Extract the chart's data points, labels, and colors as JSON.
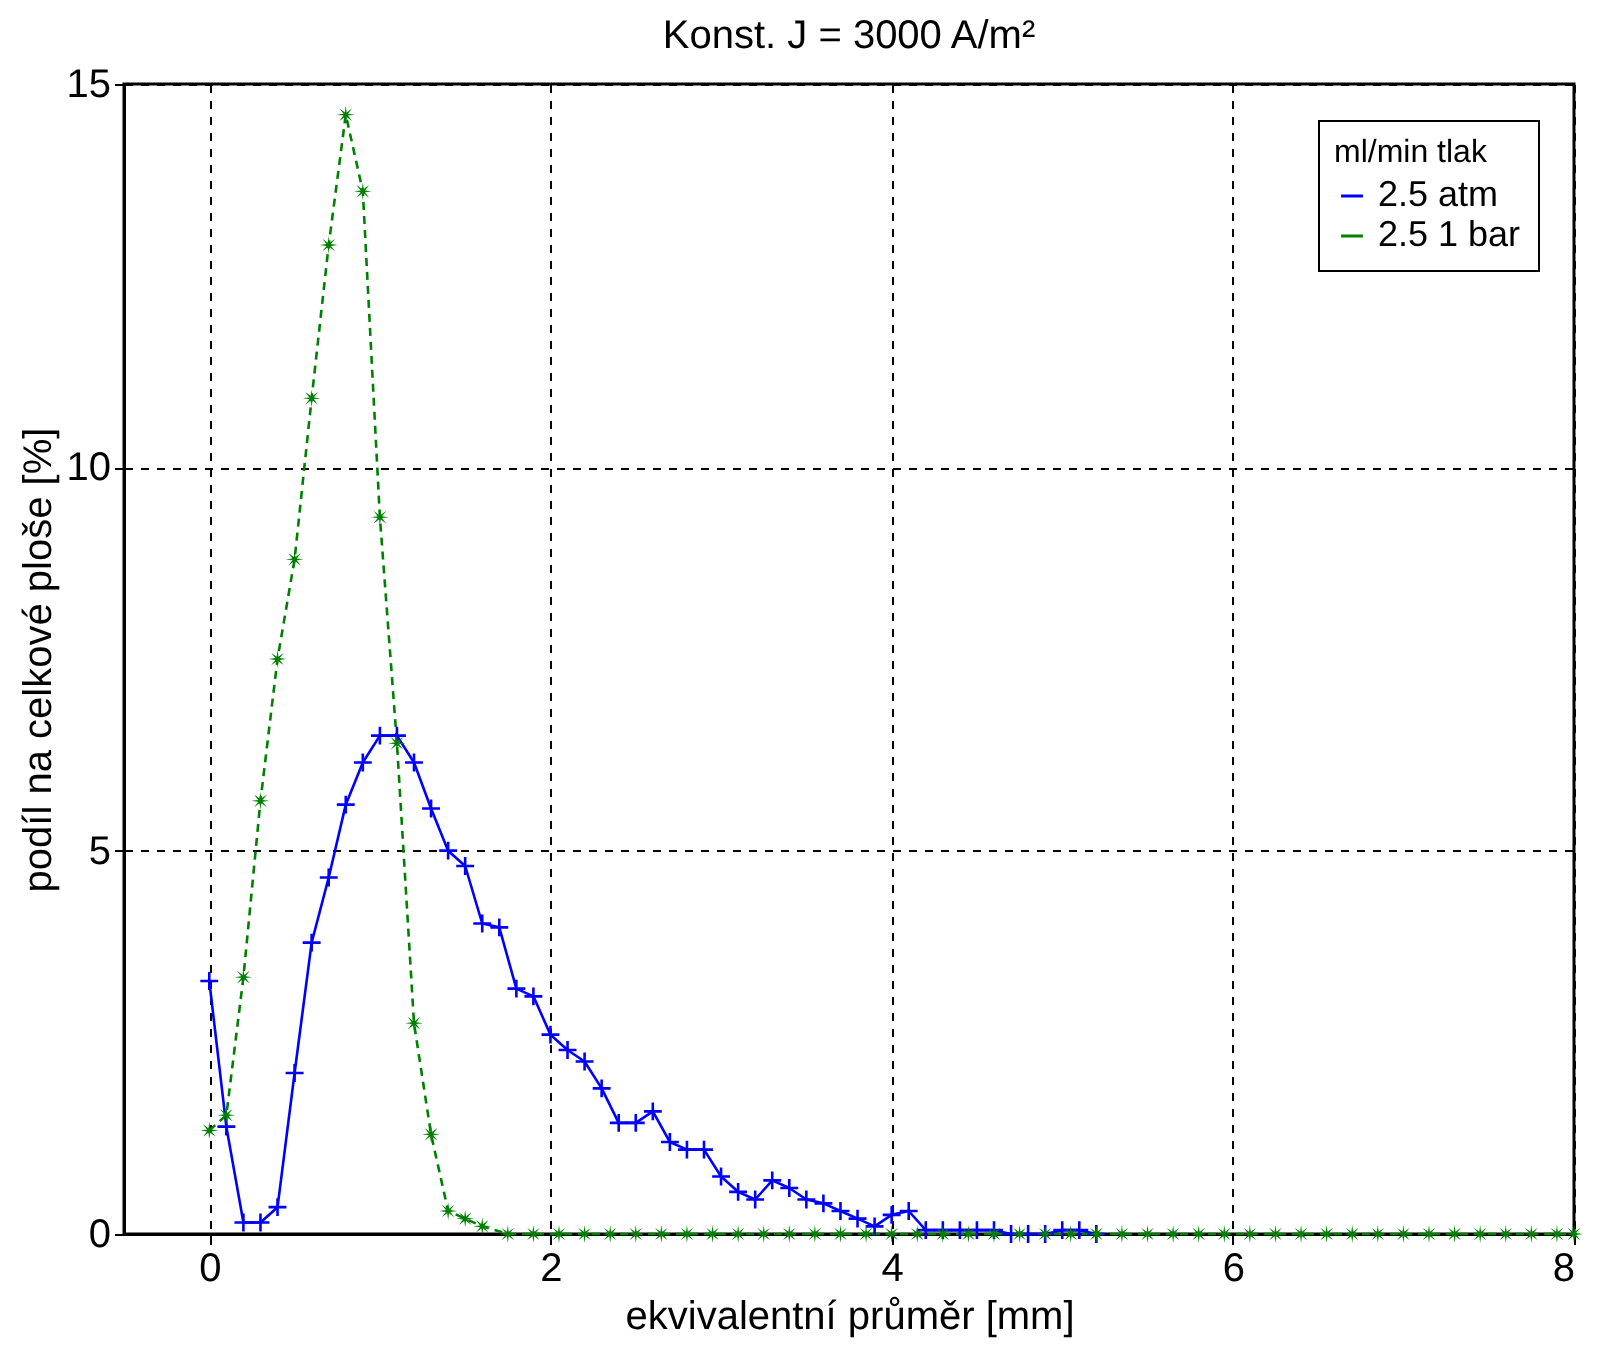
{
  "chart_data": {
    "type": "line",
    "title": "Konst. J = 3000 A/m²",
    "xlabel": "ekvivalentní průměr [mm]",
    "ylabel": "podíl na celkové ploše [%]",
    "legend_title": "ml/min tlak",
    "xlim": [
      -0.5,
      8
    ],
    "xticks": [
      0,
      2,
      4,
      6,
      8
    ],
    "ylim": [
      0,
      15
    ],
    "yticks": [
      0,
      5,
      10,
      15
    ],
    "grid": true,
    "legend": "top right",
    "series": [
      {
        "name": "2.5 atm",
        "color": "#0000ff",
        "marker": "cross",
        "line_style": "solid",
        "x": [
          0,
          0.1,
          0.2,
          0.3,
          0.4,
          0.5,
          0.6,
          0.7,
          0.8,
          0.9,
          1.0,
          1.1,
          1.2,
          1.3,
          1.4,
          1.5,
          1.6,
          1.7,
          1.8,
          1.9,
          2.0,
          2.1,
          2.2,
          2.3,
          2.4,
          2.5,
          2.6,
          2.7,
          2.8,
          2.9,
          3.0,
          3.1,
          3.2,
          3.3,
          3.4,
          3.5,
          3.6,
          3.7,
          3.8,
          3.9,
          4.0,
          4.1,
          4.2,
          4.3,
          4.4,
          4.5,
          4.6,
          4.7,
          4.8,
          4.9,
          5.0,
          5.1,
          5.2
        ],
        "values": [
          3.3,
          1.4,
          0.15,
          0.15,
          0.35,
          2.1,
          3.8,
          4.65,
          5.6,
          6.15,
          6.5,
          6.5,
          6.15,
          5.55,
          5.0,
          4.8,
          4.05,
          4.0,
          3.2,
          3.1,
          2.6,
          2.4,
          2.25,
          1.9,
          1.45,
          1.45,
          1.6,
          1.2,
          1.1,
          1.1,
          0.75,
          0.55,
          0.45,
          0.7,
          0.6,
          0.45,
          0.4,
          0.3,
          0.2,
          0.1,
          0.25,
          0.3,
          0.05,
          0.05,
          0.05,
          0.05,
          0.05,
          0,
          0,
          0,
          0.05,
          0.05,
          0
        ]
      },
      {
        "name": "2.5 1 bar",
        "color": "#008000",
        "marker": "star",
        "line_style": "dashed",
        "x": [
          0,
          0.1,
          0.2,
          0.3,
          0.4,
          0.5,
          0.6,
          0.7,
          0.8,
          0.9,
          1.0,
          1.1,
          1.2,
          1.3,
          1.4,
          1.5,
          1.6,
          1.75,
          1.9,
          2.05,
          2.2,
          2.35,
          2.5,
          2.65,
          2.8,
          2.95,
          3.1,
          3.25,
          3.4,
          3.55,
          3.7,
          3.85,
          4.0,
          4.15,
          4.3,
          4.45,
          4.6,
          4.75,
          4.9,
          5.05,
          5.2,
          5.35,
          5.5,
          5.65,
          5.8,
          5.95,
          6.1,
          6.25,
          6.4,
          6.55,
          6.7,
          6.85,
          7.0,
          7.15,
          7.3,
          7.45,
          7.6,
          7.75,
          7.9,
          8.0
        ],
        "values": [
          1.35,
          1.55,
          3.35,
          5.65,
          7.5,
          8.8,
          10.9,
          12.9,
          14.6,
          13.6,
          9.35,
          6.4,
          2.75,
          1.3,
          0.3,
          0.2,
          0.1,
          0,
          0,
          0,
          0,
          0,
          0,
          0,
          0,
          0,
          0,
          0,
          0,
          0,
          0,
          0,
          0,
          0,
          0,
          0,
          0,
          0,
          0,
          0,
          0,
          0,
          0,
          0,
          0,
          0,
          0,
          0,
          0,
          0,
          0,
          0,
          0,
          0,
          0,
          0,
          0,
          0,
          0,
          0
        ]
      }
    ]
  }
}
